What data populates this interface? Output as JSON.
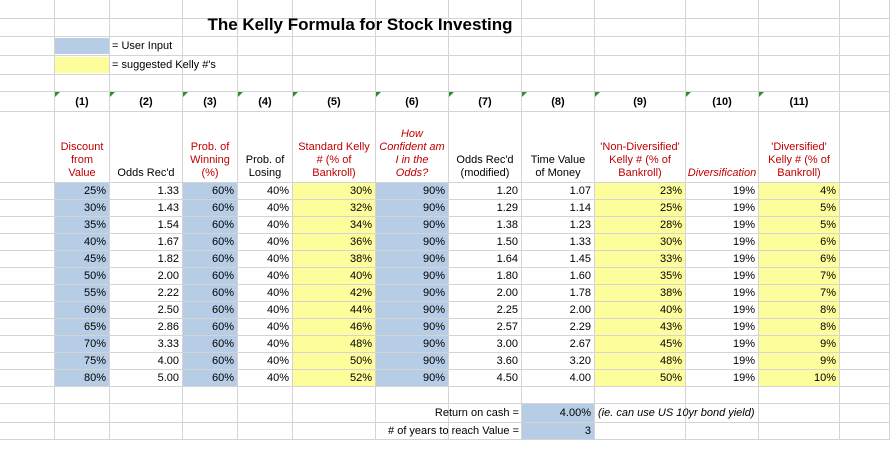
{
  "title": "The Kelly Formula for Stock Investing",
  "legend": {
    "user_input": "= User Input",
    "kelly": "= suggested Kelly #'s"
  },
  "colors": {
    "user_input": "#b7cde6",
    "kelly": "#fdfd9c",
    "header_red": "#c00000"
  },
  "col_numbers": [
    "(1)",
    "(2)",
    "(3)",
    "(4)",
    "(5)",
    "(6)",
    "(7)",
    "(8)",
    "(9)",
    "(10)",
    "(11)"
  ],
  "headers": [
    "Discount from Value",
    "Odds Rec'd",
    "Prob. of Winning (%)",
    "Prob. of Losing",
    "Standard Kelly # (% of Bankroll)",
    "How Confident am I in the Odds?",
    "Odds Rec'd (modified)",
    "Time Value of Money",
    "'Non-Diversified' Kelly # (% of Bankroll)",
    "Diversification",
    "'Diversified' Kelly # (% of Bankroll)"
  ],
  "rows": [
    [
      "25%",
      "1.33",
      "60%",
      "40%",
      "30%",
      "90%",
      "1.20",
      "1.07",
      "23%",
      "19%",
      "4%"
    ],
    [
      "30%",
      "1.43",
      "60%",
      "40%",
      "32%",
      "90%",
      "1.29",
      "1.14",
      "25%",
      "19%",
      "5%"
    ],
    [
      "35%",
      "1.54",
      "60%",
      "40%",
      "34%",
      "90%",
      "1.38",
      "1.23",
      "28%",
      "19%",
      "5%"
    ],
    [
      "40%",
      "1.67",
      "60%",
      "40%",
      "36%",
      "90%",
      "1.50",
      "1.33",
      "30%",
      "19%",
      "6%"
    ],
    [
      "45%",
      "1.82",
      "60%",
      "40%",
      "38%",
      "90%",
      "1.64",
      "1.45",
      "33%",
      "19%",
      "6%"
    ],
    [
      "50%",
      "2.00",
      "60%",
      "40%",
      "40%",
      "90%",
      "1.80",
      "1.60",
      "35%",
      "19%",
      "7%"
    ],
    [
      "55%",
      "2.22",
      "60%",
      "40%",
      "42%",
      "90%",
      "2.00",
      "1.78",
      "38%",
      "19%",
      "7%"
    ],
    [
      "60%",
      "2.50",
      "60%",
      "40%",
      "44%",
      "90%",
      "2.25",
      "2.00",
      "40%",
      "19%",
      "8%"
    ],
    [
      "65%",
      "2.86",
      "60%",
      "40%",
      "46%",
      "90%",
      "2.57",
      "2.29",
      "43%",
      "19%",
      "8%"
    ],
    [
      "70%",
      "3.33",
      "60%",
      "40%",
      "48%",
      "90%",
      "3.00",
      "2.67",
      "45%",
      "19%",
      "9%"
    ],
    [
      "75%",
      "4.00",
      "60%",
      "40%",
      "50%",
      "90%",
      "3.60",
      "3.20",
      "48%",
      "19%",
      "9%"
    ],
    [
      "80%",
      "5.00",
      "60%",
      "40%",
      "52%",
      "90%",
      "4.50",
      "4.00",
      "50%",
      "19%",
      "10%"
    ]
  ],
  "footer": {
    "cash_label": "Return on cash =",
    "cash_value": "4.00%",
    "cash_note": "(ie. can use US 10yr bond yield)",
    "years_label": "# of years to reach Value =",
    "years_value": "3"
  }
}
